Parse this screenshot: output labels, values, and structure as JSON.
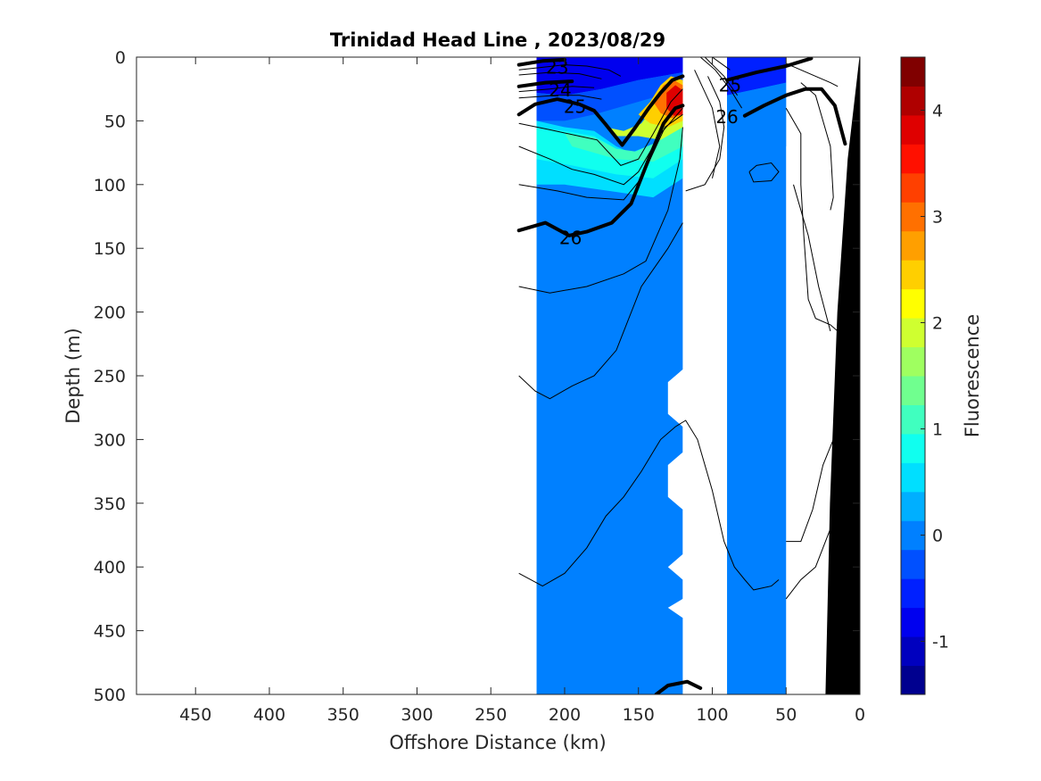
{
  "chart_data": {
    "type": "heatmap",
    "title": "Trinidad Head Line , 2023/08/29",
    "xlabel": "Offshore Distance (km)",
    "ylabel": "Depth (m)",
    "colorbar_label": "Fluorescence",
    "x_range": [
      490,
      0
    ],
    "y_range": [
      0,
      500
    ],
    "x_ticks": [
      450,
      400,
      350,
      300,
      250,
      200,
      150,
      100,
      50,
      0
    ],
    "y_ticks": [
      0,
      50,
      100,
      150,
      200,
      250,
      300,
      350,
      400,
      450,
      500
    ],
    "colorbar_range": [
      -1.5,
      4.5
    ],
    "colorbar_ticks": [
      -1,
      0,
      1,
      2,
      3,
      4
    ],
    "colorbar_tick_labels": [
      "-1",
      "0",
      "1",
      "2",
      "3",
      "4"
    ],
    "colorbar_colors": [
      "#00008f",
      "#0000bf",
      "#0000ef",
      "#0020ff",
      "#0050ff",
      "#0080ff",
      "#00afff",
      "#00dfff",
      "#10ffef",
      "#40ffbf",
      "#70ff8f",
      "#9fff60",
      "#cfff30",
      "#ffff00",
      "#ffcf00",
      "#ff9f00",
      "#ff7000",
      "#ff4000",
      "#ff1000",
      "#df0000",
      "#af0000",
      "#800000"
    ],
    "background_field_value": 0.1,
    "data_columns": [
      {
        "x_from": 219,
        "x_to": 120,
        "max_depth": 500,
        "note_value_surface": -0.7
      },
      {
        "x_from": 90,
        "x_to": 50,
        "max_depth": 500,
        "note_value_surface": -0.5
      }
    ],
    "surface_features": [
      {
        "x": 127,
        "depth": 40,
        "value": 4.0
      },
      {
        "x": 160,
        "depth": 55,
        "value": 1.5
      },
      {
        "x": 190,
        "depth": 70,
        "value": 1.0
      }
    ],
    "contour_labels": [
      {
        "text": "23",
        "x": 205,
        "y": 3
      },
      {
        "text": "24",
        "x": 203,
        "y": 21
      },
      {
        "text": "25",
        "x": 193,
        "y": 34
      },
      {
        "text": "25",
        "x": 88,
        "y": 17
      },
      {
        "text": "26",
        "x": 90,
        "y": 42
      },
      {
        "text": "26",
        "x": 196,
        "y": 137
      }
    ],
    "bold_contours": [
      {
        "name": "23",
        "points": [
          [
            231,
            6
          ],
          [
            215,
            3
          ],
          [
            200,
            2
          ]
        ]
      },
      {
        "name": "24",
        "points": [
          [
            231,
            23
          ],
          [
            213,
            20
          ],
          [
            195,
            19
          ]
        ]
      },
      {
        "name": "25",
        "points": [
          [
            231,
            45
          ],
          [
            220,
            37
          ],
          [
            205,
            33
          ],
          [
            190,
            37
          ],
          [
            180,
            42
          ],
          [
            172,
            53
          ],
          [
            161,
            69
          ],
          [
            152,
            55
          ],
          [
            143,
            40
          ],
          [
            135,
            28
          ],
          [
            127,
            18
          ],
          [
            120,
            15
          ]
        ]
      },
      {
        "name": "25",
        "points": [
          [
            90,
            18
          ],
          [
            70,
            12
          ],
          [
            50,
            7
          ],
          [
            33,
            1
          ]
        ]
      },
      {
        "name": "26",
        "points": [
          [
            231,
            136
          ],
          [
            213,
            130
          ],
          [
            197,
            140
          ],
          [
            185,
            137
          ],
          [
            168,
            130
          ],
          [
            155,
            115
          ],
          [
            143,
            80
          ],
          [
            133,
            52
          ],
          [
            125,
            40
          ],
          [
            120,
            38
          ]
        ]
      },
      {
        "name": "26",
        "points": [
          [
            78,
            46
          ],
          [
            65,
            38
          ],
          [
            50,
            30
          ],
          [
            37,
            25
          ],
          [
            26,
            25
          ],
          [
            17,
            38
          ],
          [
            10,
            68
          ]
        ]
      },
      {
        "name": "27",
        "points": [
          [
            138,
            500
          ],
          [
            130,
            493
          ],
          [
            117,
            490
          ],
          [
            108,
            495
          ]
        ]
      }
    ],
    "thin_contours": [
      [
        [
          231,
          10
        ],
        [
          215,
          8
        ],
        [
          200,
          6
        ],
        [
          185,
          7
        ],
        [
          170,
          10
        ],
        [
          162,
          15
        ]
      ],
      [
        [
          231,
          14
        ],
        [
          210,
          12
        ],
        [
          190,
          13
        ],
        [
          175,
          17
        ]
      ],
      [
        [
          231,
          27
        ],
        [
          210,
          25
        ],
        [
          195,
          23
        ],
        [
          180,
          24
        ]
      ],
      [
        [
          231,
          32
        ],
        [
          205,
          30
        ],
        [
          190,
          30
        ],
        [
          175,
          33
        ]
      ],
      [
        [
          231,
          52
        ],
        [
          210,
          57
        ],
        [
          190,
          62
        ],
        [
          178,
          65
        ],
        [
          170,
          75
        ],
        [
          162,
          85
        ],
        [
          150,
          80
        ],
        [
          140,
          60
        ],
        [
          128,
          35
        ],
        [
          120,
          25
        ]
      ],
      [
        [
          231,
          70
        ],
        [
          210,
          80
        ],
        [
          195,
          88
        ],
        [
          180,
          92
        ],
        [
          160,
          100
        ],
        [
          150,
          90
        ],
        [
          135,
          60
        ],
        [
          120,
          40
        ]
      ],
      [
        [
          231,
          100
        ],
        [
          205,
          105
        ],
        [
          185,
          110
        ],
        [
          160,
          112
        ],
        [
          148,
          95
        ],
        [
          132,
          55
        ],
        [
          120,
          45
        ]
      ],
      [
        [
          231,
          180
        ],
        [
          210,
          185
        ],
        [
          185,
          180
        ],
        [
          160,
          170
        ],
        [
          145,
          160
        ],
        [
          130,
          120
        ],
        [
          122,
          80
        ],
        [
          120,
          55
        ]
      ],
      [
        [
          231,
          250
        ],
        [
          220,
          262
        ],
        [
          210,
          268
        ],
        [
          195,
          258
        ],
        [
          180,
          250
        ],
        [
          165,
          230
        ],
        [
          148,
          180
        ],
        [
          130,
          150
        ],
        [
          120,
          130
        ]
      ],
      [
        [
          231,
          405
        ],
        [
          215,
          415
        ],
        [
          200,
          405
        ],
        [
          185,
          385
        ],
        [
          172,
          360
        ],
        [
          160,
          345
        ],
        [
          148,
          325
        ],
        [
          135,
          300
        ],
        [
          125,
          290
        ],
        [
          118,
          285
        ],
        [
          110,
          300
        ],
        [
          100,
          340
        ],
        [
          92,
          380
        ],
        [
          85,
          400
        ],
        [
          78,
          410
        ],
        [
          72,
          418
        ],
        [
          60,
          415
        ],
        [
          55,
          410
        ]
      ],
      [
        [
          75,
          90
        ],
        [
          70,
          85
        ],
        [
          60,
          83
        ],
        [
          55,
          90
        ],
        [
          60,
          97
        ],
        [
          72,
          98
        ],
        [
          75,
          90
        ]
      ],
      [
        [
          108,
          0
        ],
        [
          98,
          10
        ],
        [
          88,
          25
        ],
        [
          80,
          40
        ]
      ],
      [
        [
          105,
          0
        ],
        [
          92,
          15
        ],
        [
          83,
          30
        ]
      ],
      [
        [
          100,
          0
        ],
        [
          88,
          10
        ]
      ],
      [
        [
          103,
          15
        ],
        [
          95,
          35
        ],
        [
          92,
          55
        ],
        [
          95,
          80
        ],
        [
          105,
          100
        ],
        [
          118,
          105
        ]
      ],
      [
        [
          112,
          10
        ],
        [
          100,
          40
        ],
        [
          95,
          70
        ],
        [
          100,
          95
        ]
      ],
      [
        [
          50,
          5
        ],
        [
          40,
          10
        ],
        [
          30,
          15
        ],
        [
          20,
          20
        ],
        [
          15,
          23
        ]
      ],
      [
        [
          40,
          20
        ],
        [
          30,
          30
        ],
        [
          25,
          50
        ],
        [
          20,
          70
        ],
        [
          18,
          110
        ],
        [
          20,
          120
        ]
      ],
      [
        [
          50,
          40
        ],
        [
          40,
          60
        ],
        [
          40,
          100
        ],
        [
          38,
          140
        ],
        [
          35,
          190
        ],
        [
          30,
          205
        ],
        [
          20,
          210
        ],
        [
          10,
          220
        ]
      ],
      [
        [
          45,
          100
        ],
        [
          35,
          140
        ],
        [
          28,
          180
        ],
        [
          20,
          215
        ]
      ],
      [
        [
          50,
          425
        ],
        [
          40,
          410
        ],
        [
          30,
          400
        ],
        [
          25,
          385
        ],
        [
          20,
          370
        ],
        [
          15,
          340
        ],
        [
          10,
          320
        ]
      ],
      [
        [
          50,
          380
        ],
        [
          40,
          380
        ],
        [
          32,
          355
        ],
        [
          25,
          320
        ],
        [
          18,
          300
        ],
        [
          12,
          275
        ],
        [
          8,
          250
        ]
      ]
    ],
    "bathymetry": [
      [
        23,
        500
      ],
      [
        0,
        500
      ],
      [
        0,
        0
      ],
      [
        8,
        80
      ],
      [
        15,
        200
      ],
      [
        20,
        350
      ],
      [
        23,
        500
      ]
    ],
    "notched_edge_left_column": [
      [
        120,
        245
      ],
      [
        130,
        255
      ],
      [
        130,
        280
      ],
      [
        120,
        290
      ],
      [
        120,
        310
      ],
      [
        130,
        320
      ],
      [
        130,
        345
      ],
      [
        120,
        355
      ],
      [
        120,
        390
      ],
      [
        130,
        400
      ],
      [
        120,
        410
      ],
      [
        120,
        425
      ],
      [
        130,
        432
      ],
      [
        120,
        440
      ]
    ]
  }
}
